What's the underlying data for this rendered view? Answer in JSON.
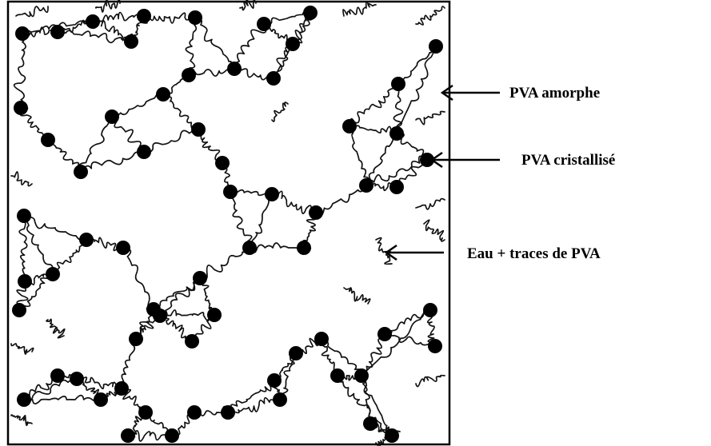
{
  "labels": {
    "amorphous": "PVA amorphe",
    "crystalline": "PVA cristallisé",
    "water": "Eau + traces de PVA"
  }
}
